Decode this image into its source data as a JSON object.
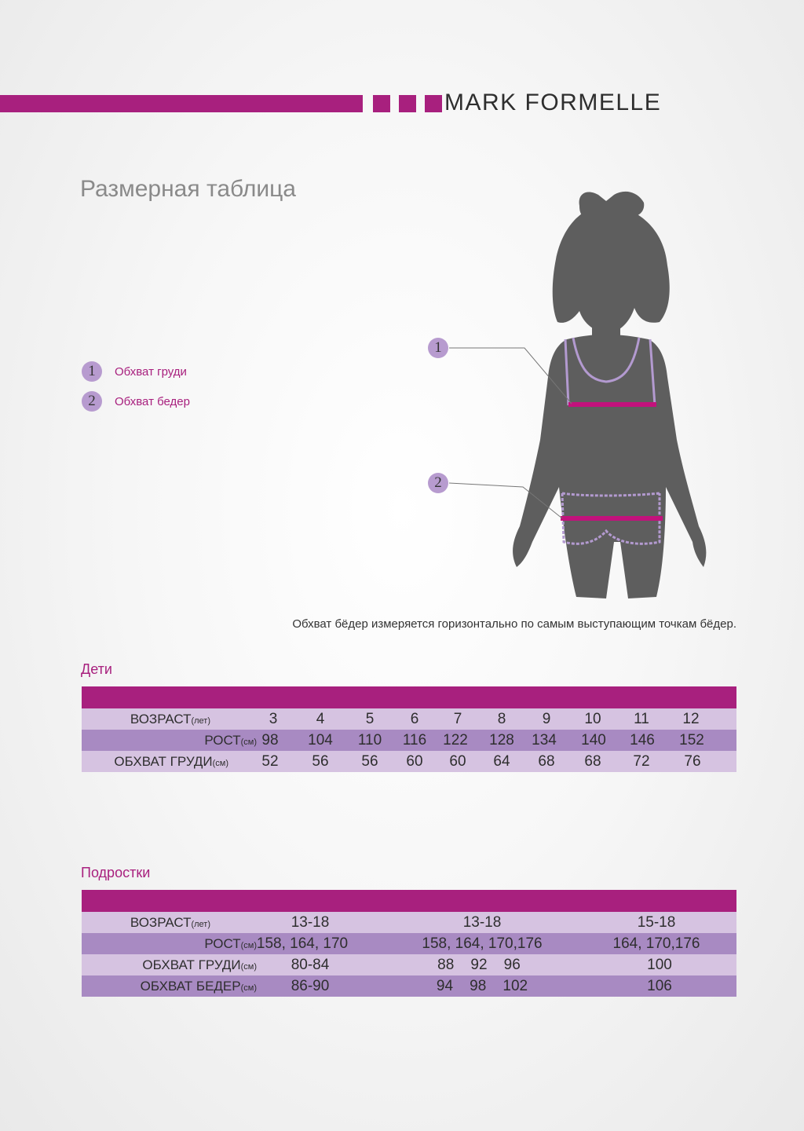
{
  "brand": {
    "name": "MARK FORMELLE",
    "color": "#a8207e"
  },
  "page_title": "Размерная таблица",
  "legend": [
    {
      "num": "1",
      "label": "Обхват груди"
    },
    {
      "num": "2",
      "label": "Обхват бедер"
    }
  ],
  "figure": {
    "marker_1": "1",
    "marker_2": "2",
    "silhouette": "girl-silhouette-icon"
  },
  "note": "Обхват бёдер измеряется горизонтально по самым выступающим точкам бёдер.",
  "kids": {
    "title": "Дети",
    "rows": [
      {
        "label": "ВОЗРАСТ",
        "unit": "(лет)",
        "values": [
          "3",
          "4",
          "5",
          "6",
          "7",
          "8",
          "9",
          "10",
          "11",
          "12"
        ]
      },
      {
        "label": "РОСТ",
        "unit": "(см)",
        "values": [
          "98",
          "104",
          "110",
          "116",
          "122",
          "128",
          "134",
          "140",
          "146",
          "152"
        ]
      },
      {
        "label": "ОБХВАТ ГРУДИ",
        "unit": "(см)",
        "values": [
          "52",
          "56",
          "56",
          "60",
          "60",
          "64",
          "68",
          "68",
          "72",
          "76"
        ]
      }
    ]
  },
  "teens": {
    "title": "Подростки",
    "rows": [
      {
        "label": "ВОЗРАСТ",
        "unit": "(лет)",
        "values": [
          "13-18",
          "13-18",
          "15-18"
        ]
      },
      {
        "label": "РОСТ",
        "unit": "(см)",
        "values": [
          "158, 164, 170",
          "158, 164, 170,176",
          "164, 170,176"
        ]
      },
      {
        "label": "ОБХВАТ ГРУДИ",
        "unit": "(см)",
        "values": [
          "80-84",
          "88    92    96",
          "100"
        ]
      },
      {
        "label": "ОБХВАТ БЕДЕР",
        "unit": "(см)",
        "values": [
          "86-90",
          "94    98    102",
          "106"
        ]
      }
    ]
  },
  "colors": {
    "accent": "#a8207e",
    "row_light": "#d6c3e1",
    "row_dark": "#a88ac2",
    "marker": "#b79bcf",
    "silhouette": "#5e5e5e"
  }
}
